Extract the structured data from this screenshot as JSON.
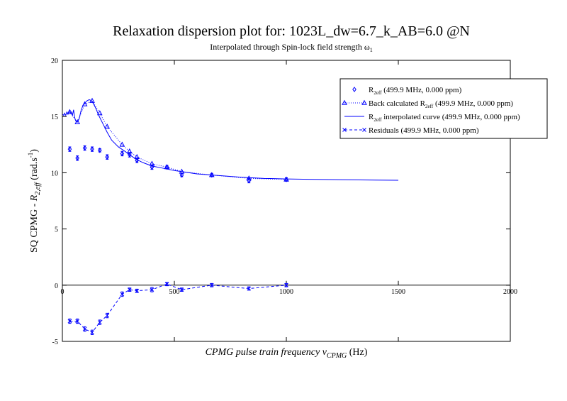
{
  "chart_data": {
    "type": "scatter",
    "title": "Relaxation dispersion plot for: 1023L_dw=6.7_k_AB=6.0 @N",
    "subtitle": "Interpolated through Spin-lock field strength ω",
    "subtitle_sub": "1",
    "xlabel": {
      "prefix": "CPMG pulse train frequency ",
      "nu": "ν",
      "sub": "CPMG",
      "suffix": " (Hz)"
    },
    "ylabel": {
      "prefix": "SQ CPMG - ",
      "r": "R",
      "sub": "2,eff",
      "unit": " (rad.s",
      "sup": "-1",
      "close": ")"
    },
    "xlim": [
      0,
      2000
    ],
    "ylim": [
      -5,
      20
    ],
    "x_ticks": [
      0,
      500,
      1000,
      1500,
      2000
    ],
    "y_ticks": [
      -5,
      0,
      5,
      10,
      15,
      20
    ],
    "grid": false,
    "legend_position": "top-right",
    "colors": {
      "series": "#0000ff",
      "axes": "#000000"
    },
    "legend": [
      {
        "text": "R",
        "sub": "2eff",
        "rest": " (499.9 MHz, 0.000 ppm)",
        "marker": "diamond",
        "line": "none"
      },
      {
        "text": "Back calculated R",
        "sub": "2eff",
        "rest": " (499.9 MHz, 0.000 ppm)",
        "marker": "triangle",
        "line": "dotted"
      },
      {
        "text": "R",
        "sub": "2eff",
        "rest": " interpolated curve (499.9 MHz, 0.000 ppm)",
        "marker": "none",
        "line": "solid"
      },
      {
        "text": "Residuals (499.9 MHz, 0.000 ppm)",
        "sub": "",
        "rest": "",
        "marker": "x",
        "line": "dashed"
      }
    ],
    "series": [
      {
        "name": "R2eff (499.9 MHz, 0.000 ppm)",
        "marker": "diamond",
        "x": [
          33,
          67,
          100,
          133,
          167,
          200,
          267,
          300,
          333,
          400,
          467,
          533,
          667,
          833,
          1000
        ],
        "y": [
          12.1,
          11.3,
          12.2,
          12.1,
          12.0,
          11.4,
          11.7,
          11.6,
          11.1,
          10.5,
          10.5,
          9.8,
          9.8,
          9.3,
          9.4
        ],
        "err": [
          0.2,
          0.2,
          0.2,
          0.2,
          0.15,
          0.2,
          0.2,
          0.2,
          0.2,
          0.2,
          0.15,
          0.15,
          0.15,
          0.2,
          0.15
        ]
      },
      {
        "name": "Back calculated R2eff (499.9 MHz, 0.000 ppm)",
        "marker": "triangle",
        "x": [
          33,
          67,
          100,
          133,
          167,
          200,
          267,
          300,
          333,
          400,
          467,
          533,
          667,
          833,
          1000
        ],
        "y": [
          15.4,
          14.5,
          16.1,
          16.4,
          15.3,
          14.1,
          12.5,
          11.9,
          11.4,
          10.8,
          10.5,
          10.1,
          9.8,
          9.5,
          9.4
        ]
      },
      {
        "name": "R2eff interpolated curve (499.9 MHz, 0.000 ppm)",
        "marker": "none",
        "x": [
          2,
          6,
          10,
          15,
          20,
          25,
          30,
          35,
          40,
          45,
          50,
          55,
          60,
          67,
          75,
          83,
          92,
          100,
          110,
          120,
          130,
          140,
          150,
          160,
          170,
          180,
          200,
          220,
          250,
          280,
          300,
          330,
          360,
          400,
          450,
          500,
          550,
          600,
          700,
          800,
          900,
          1000,
          1100,
          1250,
          1400,
          1500
        ],
        "y": [
          15.2,
          15.1,
          15.3,
          15.1,
          15.4,
          15.2,
          15.5,
          15.3,
          15.4,
          15.1,
          15.6,
          14.9,
          14.6,
          14.5,
          14.8,
          15.5,
          16.0,
          16.2,
          16.4,
          16.5,
          16.4,
          16.1,
          15.7,
          15.2,
          14.8,
          14.4,
          13.6,
          12.9,
          12.3,
          11.9,
          11.6,
          11.2,
          10.9,
          10.6,
          10.4,
          10.2,
          10.05,
          9.9,
          9.75,
          9.6,
          9.5,
          9.45,
          9.42,
          9.38,
          9.35,
          9.33
        ]
      },
      {
        "name": "Residuals (499.9 MHz, 0.000 ppm)",
        "marker": "x",
        "x": [
          33,
          67,
          100,
          133,
          167,
          200,
          267,
          300,
          333,
          400,
          467,
          533,
          667,
          833,
          1000
        ],
        "y": [
          -3.2,
          -3.2,
          -3.9,
          -4.2,
          -3.3,
          -2.7,
          -0.8,
          -0.4,
          -0.5,
          -0.4,
          0.1,
          -0.4,
          0.0,
          -0.3,
          0.0
        ],
        "err": [
          0.2,
          0.2,
          0.2,
          0.2,
          0.2,
          0.2,
          0.2,
          0.15,
          0.15,
          0.2,
          0.15,
          0.15,
          0.15,
          0.15,
          0.15
        ]
      }
    ]
  }
}
